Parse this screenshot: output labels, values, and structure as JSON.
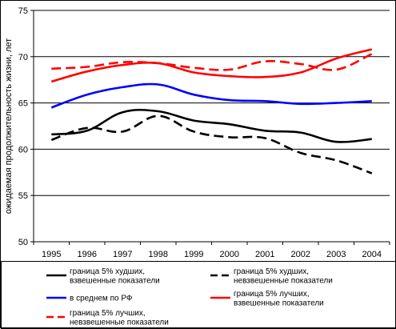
{
  "chart_data": {
    "type": "line",
    "title": "",
    "xlabel": "",
    "ylabel": "ожидаемая продолжительность жизни, лет",
    "x": [
      "1995",
      "1996",
      "1997",
      "1998",
      "1999",
      "2000",
      "2001",
      "2002",
      "2003",
      "2004"
    ],
    "ylim": [
      50,
      75
    ],
    "yticks": [
      50,
      55,
      60,
      65,
      70,
      75
    ],
    "grid": "horizontal",
    "legend_position": "bottom",
    "series": [
      {
        "name": "граница 5% худших, взвешенные показатели",
        "name_lines": [
          "граница 5% худших,",
          "взвешенные показатели"
        ],
        "values": [
          61.6,
          62.0,
          64.0,
          64.1,
          63.1,
          62.7,
          62.0,
          61.8,
          60.8,
          61.1
        ],
        "color": "#000000",
        "dash": "solid",
        "legend_cell": "1,1"
      },
      {
        "name": "граница 5% худших, невзвешенные показатели",
        "name_lines": [
          "граница 5% худших,",
          "невзвешенные показатели"
        ],
        "values": [
          61.0,
          62.3,
          61.9,
          63.6,
          61.9,
          61.3,
          61.2,
          59.6,
          58.8,
          57.4
        ],
        "color": "#000000",
        "dash": "dashed",
        "legend_cell": "1,2"
      },
      {
        "name": "в среднем по РФ",
        "name_lines": [
          "в среднем по РФ"
        ],
        "values": [
          64.5,
          65.9,
          66.7,
          67.0,
          65.9,
          65.3,
          65.2,
          64.9,
          65.0,
          65.2
        ],
        "color": "#0000ff",
        "dash": "solid",
        "legend_cell": "2,1"
      },
      {
        "name": "граница 5% лучших, взвешенные показатели",
        "name_lines": [
          "граница 5% лучших,",
          "взвешенные показатели"
        ],
        "values": [
          67.3,
          68.4,
          69.1,
          69.3,
          68.3,
          67.9,
          67.8,
          68.3,
          69.8,
          70.8
        ],
        "color": "#ff0000",
        "dash": "solid",
        "legend_cell": "2,2"
      },
      {
        "name": "граница 5% лучших, невзвешенные показатели",
        "name_lines": [
          "граница 5% лучших,",
          "невзвешенные показатели"
        ],
        "values": [
          68.7,
          68.9,
          69.4,
          69.3,
          68.8,
          68.6,
          69.5,
          69.2,
          68.6,
          70.3
        ],
        "color": "#ff0000",
        "dash": "dashed",
        "legend_cell": "3,1"
      }
    ]
  }
}
